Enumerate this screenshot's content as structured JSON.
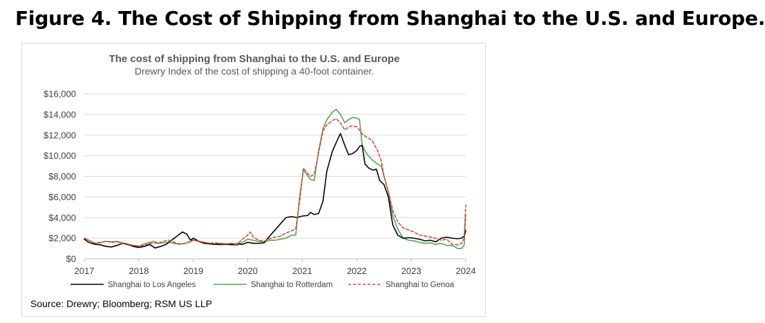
{
  "figure_heading": "Figure 4. The Cost of Shipping from Shanghai to the U.S. and Europe.",
  "source_note": "Source: Drewry; Bloomberg; RSM US LLP",
  "chart_data": {
    "type": "line",
    "title": "The cost of shipping from Shanghai to the U.S. and Europe",
    "subtitle": "Drewry Index of the cost of shipping a 40-foot container.",
    "xlabel": "",
    "ylabel": "",
    "xlim": [
      2017,
      2024
    ],
    "ylim": [
      0,
      16000
    ],
    "x_ticks": [
      2017,
      2018,
      2019,
      2020,
      2021,
      2022,
      2023,
      2024
    ],
    "x_tick_labels": [
      "2017",
      "2018",
      "2019",
      "2020",
      "2021",
      "2022",
      "2023",
      "2024"
    ],
    "y_ticks": [
      0,
      2000,
      4000,
      6000,
      8000,
      10000,
      12000,
      14000,
      16000
    ],
    "y_tick_labels": [
      "$0",
      "$2,000",
      "$4,000",
      "$6,000",
      "$8,000",
      "$10,000",
      "$12,000",
      "$14,000",
      "$16,000"
    ],
    "grid": "horizontal",
    "legend_position": "bottom",
    "series": [
      {
        "name": "Shanghai to Los Angeles",
        "color": "#000000",
        "dash": "solid",
        "points": [
          [
            2017.0,
            1900
          ],
          [
            2017.08,
            1600
          ],
          [
            2017.2,
            1400
          ],
          [
            2017.3,
            1350
          ],
          [
            2017.4,
            1200
          ],
          [
            2017.5,
            1150
          ],
          [
            2017.6,
            1300
          ],
          [
            2017.7,
            1500
          ],
          [
            2017.8,
            1400
          ],
          [
            2017.9,
            1200
          ],
          [
            2018.0,
            1100
          ],
          [
            2018.1,
            1200
          ],
          [
            2018.2,
            1400
          ],
          [
            2018.3,
            1050
          ],
          [
            2018.4,
            1200
          ],
          [
            2018.5,
            1400
          ],
          [
            2018.6,
            1800
          ],
          [
            2018.7,
            2200
          ],
          [
            2018.8,
            2600
          ],
          [
            2018.88,
            2400
          ],
          [
            2018.95,
            1800
          ],
          [
            2019.0,
            2000
          ],
          [
            2019.1,
            1700
          ],
          [
            2019.2,
            1500
          ],
          [
            2019.3,
            1450
          ],
          [
            2019.4,
            1400
          ],
          [
            2019.5,
            1450
          ],
          [
            2019.6,
            1400
          ],
          [
            2019.7,
            1400
          ],
          [
            2019.8,
            1450
          ],
          [
            2019.9,
            1400
          ],
          [
            2020.0,
            1600
          ],
          [
            2020.1,
            1500
          ],
          [
            2020.2,
            1500
          ],
          [
            2020.3,
            1550
          ],
          [
            2020.4,
            2200
          ],
          [
            2020.5,
            2800
          ],
          [
            2020.6,
            3400
          ],
          [
            2020.7,
            4000
          ],
          [
            2020.8,
            4100
          ],
          [
            2020.9,
            4000
          ],
          [
            2021.0,
            4150
          ],
          [
            2021.1,
            4200
          ],
          [
            2021.15,
            4500
          ],
          [
            2021.22,
            4300
          ],
          [
            2021.3,
            4400
          ],
          [
            2021.38,
            5600
          ],
          [
            2021.45,
            8500
          ],
          [
            2021.55,
            10400
          ],
          [
            2021.65,
            11600
          ],
          [
            2021.7,
            12150
          ],
          [
            2021.78,
            11000
          ],
          [
            2021.85,
            10100
          ],
          [
            2021.92,
            10200
          ],
          [
            2022.0,
            10500
          ],
          [
            2022.05,
            10900
          ],
          [
            2022.1,
            11000
          ],
          [
            2022.15,
            9200
          ],
          [
            2022.22,
            8800
          ],
          [
            2022.3,
            8600
          ],
          [
            2022.36,
            8700
          ],
          [
            2022.42,
            7600
          ],
          [
            2022.5,
            7200
          ],
          [
            2022.58,
            6000
          ],
          [
            2022.66,
            3300
          ],
          [
            2022.75,
            2300
          ],
          [
            2022.85,
            2000
          ],
          [
            2022.95,
            2050
          ],
          [
            2023.05,
            2000
          ],
          [
            2023.15,
            1900
          ],
          [
            2023.25,
            1750
          ],
          [
            2023.35,
            1800
          ],
          [
            2023.45,
            1650
          ],
          [
            2023.55,
            2000
          ],
          [
            2023.65,
            2100
          ],
          [
            2023.75,
            2000
          ],
          [
            2023.85,
            1950
          ],
          [
            2023.92,
            2000
          ],
          [
            2023.97,
            2200
          ],
          [
            2024.0,
            2750
          ]
        ]
      },
      {
        "name": "Shanghai to Rotterdam",
        "color": "#3fae49",
        "dash": "solid",
        "points": [
          [
            2017.0,
            2000
          ],
          [
            2017.08,
            1800
          ],
          [
            2017.2,
            1500
          ],
          [
            2017.3,
            1550
          ],
          [
            2017.4,
            1700
          ],
          [
            2017.5,
            1650
          ],
          [
            2017.6,
            1700
          ],
          [
            2017.7,
            1550
          ],
          [
            2017.8,
            1400
          ],
          [
            2017.9,
            1300
          ],
          [
            2018.0,
            1200
          ],
          [
            2018.1,
            1450
          ],
          [
            2018.2,
            1600
          ],
          [
            2018.28,
            1700
          ],
          [
            2018.35,
            1500
          ],
          [
            2018.45,
            1550
          ],
          [
            2018.55,
            1600
          ],
          [
            2018.65,
            1500
          ],
          [
            2018.75,
            1400
          ],
          [
            2018.85,
            1500
          ],
          [
            2018.95,
            1650
          ],
          [
            2019.0,
            1800
          ],
          [
            2019.1,
            1700
          ],
          [
            2019.2,
            1600
          ],
          [
            2019.3,
            1500
          ],
          [
            2019.4,
            1400
          ],
          [
            2019.5,
            1350
          ],
          [
            2019.6,
            1400
          ],
          [
            2019.7,
            1350
          ],
          [
            2019.8,
            1300
          ],
          [
            2019.9,
            1600
          ],
          [
            2020.0,
            1900
          ],
          [
            2020.1,
            1800
          ],
          [
            2020.2,
            1700
          ],
          [
            2020.3,
            1650
          ],
          [
            2020.4,
            1800
          ],
          [
            2020.5,
            1800
          ],
          [
            2020.6,
            1900
          ],
          [
            2020.7,
            2000
          ],
          [
            2020.8,
            2300
          ],
          [
            2020.88,
            2300
          ],
          [
            2020.95,
            6000
          ],
          [
            2021.02,
            8600
          ],
          [
            2021.08,
            8200
          ],
          [
            2021.15,
            7700
          ],
          [
            2021.22,
            7600
          ],
          [
            2021.3,
            10500
          ],
          [
            2021.38,
            12600
          ],
          [
            2021.45,
            13500
          ],
          [
            2021.55,
            14200
          ],
          [
            2021.62,
            14500
          ],
          [
            2021.7,
            14000
          ],
          [
            2021.78,
            13200
          ],
          [
            2021.85,
            13500
          ],
          [
            2021.92,
            13700
          ],
          [
            2022.0,
            13650
          ],
          [
            2022.05,
            13500
          ],
          [
            2022.1,
            11000
          ],
          [
            2022.18,
            10200
          ],
          [
            2022.28,
            9600
          ],
          [
            2022.38,
            9200
          ],
          [
            2022.45,
            9000
          ],
          [
            2022.5,
            8000
          ],
          [
            2022.58,
            6500
          ],
          [
            2022.66,
            4200
          ],
          [
            2022.75,
            2900
          ],
          [
            2022.85,
            2000
          ],
          [
            2022.95,
            1800
          ],
          [
            2023.05,
            1750
          ],
          [
            2023.15,
            1600
          ],
          [
            2023.25,
            1500
          ],
          [
            2023.35,
            1550
          ],
          [
            2023.45,
            1400
          ],
          [
            2023.55,
            1500
          ],
          [
            2023.65,
            1300
          ],
          [
            2023.75,
            1300
          ],
          [
            2023.85,
            1000
          ],
          [
            2023.92,
            1000
          ],
          [
            2023.97,
            1300
          ],
          [
            2024.0,
            4300
          ]
        ]
      },
      {
        "name": "Shanghai to Genoa",
        "color": "#e0403c",
        "dash": "dashed",
        "points": [
          [
            2017.0,
            2000
          ],
          [
            2017.08,
            1800
          ],
          [
            2017.2,
            1500
          ],
          [
            2017.3,
            1600
          ],
          [
            2017.4,
            1700
          ],
          [
            2017.5,
            1600
          ],
          [
            2017.6,
            1650
          ],
          [
            2017.7,
            1500
          ],
          [
            2017.8,
            1350
          ],
          [
            2017.9,
            1300
          ],
          [
            2018.0,
            1250
          ],
          [
            2018.1,
            1300
          ],
          [
            2018.2,
            1500
          ],
          [
            2018.28,
            1550
          ],
          [
            2018.35,
            1500
          ],
          [
            2018.45,
            1700
          ],
          [
            2018.55,
            1800
          ],
          [
            2018.65,
            1600
          ],
          [
            2018.75,
            1450
          ],
          [
            2018.85,
            1500
          ],
          [
            2018.95,
            1700
          ],
          [
            2019.0,
            1800
          ],
          [
            2019.1,
            1700
          ],
          [
            2019.2,
            1600
          ],
          [
            2019.3,
            1500
          ],
          [
            2019.4,
            1550
          ],
          [
            2019.5,
            1500
          ],
          [
            2019.6,
            1450
          ],
          [
            2019.7,
            1500
          ],
          [
            2019.8,
            1400
          ],
          [
            2019.9,
            1900
          ],
          [
            2020.0,
            2300
          ],
          [
            2020.05,
            2600
          ],
          [
            2020.1,
            2100
          ],
          [
            2020.2,
            1800
          ],
          [
            2020.3,
            1700
          ],
          [
            2020.4,
            1950
          ],
          [
            2020.5,
            2100
          ],
          [
            2020.6,
            2200
          ],
          [
            2020.7,
            2500
          ],
          [
            2020.8,
            2700
          ],
          [
            2020.88,
            2900
          ],
          [
            2020.95,
            5500
          ],
          [
            2021.02,
            8800
          ],
          [
            2021.08,
            8400
          ],
          [
            2021.15,
            8000
          ],
          [
            2021.22,
            8200
          ],
          [
            2021.3,
            10300
          ],
          [
            2021.38,
            12400
          ],
          [
            2021.45,
            13000
          ],
          [
            2021.55,
            13400
          ],
          [
            2021.62,
            13600
          ],
          [
            2021.7,
            13200
          ],
          [
            2021.78,
            12500
          ],
          [
            2021.85,
            12800
          ],
          [
            2021.92,
            12900
          ],
          [
            2022.0,
            12800
          ],
          [
            2022.05,
            12500
          ],
          [
            2022.1,
            12100
          ],
          [
            2022.18,
            11800
          ],
          [
            2022.28,
            11500
          ],
          [
            2022.38,
            10500
          ],
          [
            2022.45,
            9500
          ],
          [
            2022.5,
            8000
          ],
          [
            2022.58,
            6500
          ],
          [
            2022.66,
            4700
          ],
          [
            2022.75,
            3600
          ],
          [
            2022.85,
            3000
          ],
          [
            2022.95,
            2800
          ],
          [
            2023.05,
            2600
          ],
          [
            2023.15,
            2300
          ],
          [
            2023.25,
            2200
          ],
          [
            2023.35,
            2100
          ],
          [
            2023.45,
            2000
          ],
          [
            2023.55,
            1800
          ],
          [
            2023.65,
            1900
          ],
          [
            2023.75,
            1400
          ],
          [
            2023.85,
            1350
          ],
          [
            2023.92,
            1500
          ],
          [
            2023.97,
            2000
          ],
          [
            2024.0,
            5200
          ]
        ]
      }
    ]
  }
}
